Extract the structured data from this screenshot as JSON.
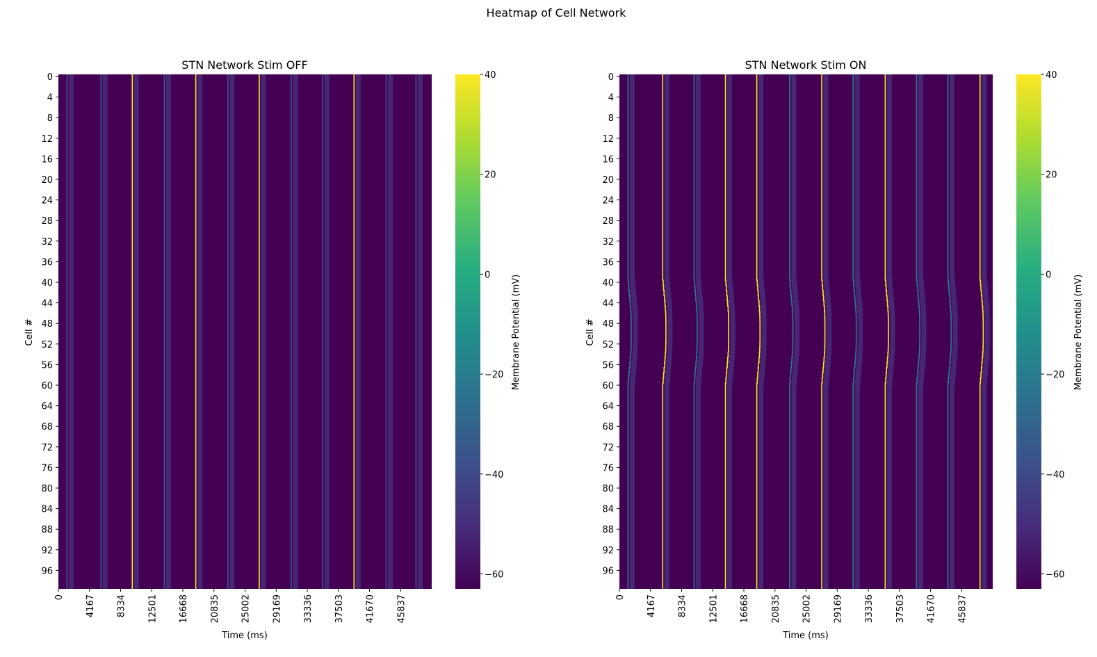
{
  "figure_title": "Heatmap of Cell Network",
  "chart_data": [
    {
      "type": "heatmap",
      "title": "STN Network Stim OFF",
      "xlabel": "Time (ms)",
      "ylabel": "Cell #",
      "x_tick_labels": [
        "0",
        "4167",
        "8334",
        "12501",
        "16668",
        "20835",
        "25002",
        "29169",
        "33336",
        "37503",
        "41670",
        "45837"
      ],
      "x_range_ms": [
        0,
        50000
      ],
      "y_tick_labels": [
        "0",
        "4",
        "8",
        "12",
        "16",
        "20",
        "24",
        "28",
        "32",
        "36",
        "40",
        "44",
        "48",
        "52",
        "56",
        "60",
        "64",
        "68",
        "72",
        "76",
        "80",
        "84",
        "88",
        "92",
        "96"
      ],
      "n_cells": 100,
      "colorbar": {
        "label": "Membrane Potential (mV)",
        "range": [
          -63,
          40
        ],
        "ticks": [
          "40",
          "20",
          "0",
          "−20",
          "−40",
          "−60"
        ],
        "colormap": "viridis"
      },
      "baseline_mV": -63,
      "spike_times_ms": [
        1150,
        5700,
        9900,
        14200,
        18400,
        22700,
        26900,
        31200,
        35400,
        39600,
        43900,
        47900
      ],
      "spike_peak_mV": [
        -35,
        -35,
        40,
        -35,
        40,
        -35,
        40,
        -35,
        -35,
        40,
        -35,
        -35
      ],
      "cell_time_offset_ms": []
    },
    {
      "type": "heatmap",
      "title": "STN Network Stim ON",
      "xlabel": "Time (ms)",
      "ylabel": "Cell #",
      "x_tick_labels": [
        "0",
        "4167",
        "8334",
        "12501",
        "16668",
        "20835",
        "25002",
        "29169",
        "33336",
        "37503",
        "41670",
        "45837"
      ],
      "x_range_ms": [
        0,
        50000
      ],
      "y_tick_labels": [
        "0",
        "4",
        "8",
        "12",
        "16",
        "20",
        "24",
        "28",
        "32",
        "36",
        "40",
        "44",
        "48",
        "52",
        "56",
        "60",
        "64",
        "68",
        "72",
        "76",
        "80",
        "84",
        "88",
        "92",
        "96"
      ],
      "n_cells": 100,
      "colorbar": {
        "label": "Membrane Potential (mV)",
        "range": [
          -63,
          40
        ],
        "ticks": [
          "40",
          "20",
          "0",
          "−20",
          "−40",
          "−60"
        ],
        "colormap": "viridis"
      },
      "baseline_mV": -63,
      "spike_times_ms": [
        1150,
        5800,
        10000,
        14200,
        18400,
        22800,
        27100,
        31300,
        35600,
        39800,
        44000,
        48300
      ],
      "spike_peak_mV": [
        -20,
        40,
        -20,
        40,
        40,
        -20,
        40,
        -20,
        40,
        -20,
        -20,
        40
      ],
      "cell_time_offset_ms": [
        0,
        0,
        0,
        0,
        0,
        0,
        0,
        0,
        0,
        0,
        0,
        0,
        0,
        0,
        0,
        0,
        0,
        0,
        0,
        0,
        0,
        0,
        0,
        0,
        0,
        0,
        0,
        0,
        0,
        0,
        0,
        0,
        0,
        0,
        0,
        0,
        0,
        0,
        0,
        0,
        60,
        120,
        180,
        240,
        300,
        360,
        400,
        420,
        430,
        430,
        430,
        430,
        420,
        400,
        360,
        300,
        240,
        180,
        120,
        60,
        0,
        0,
        0,
        0,
        0,
        0,
        0,
        0,
        0,
        0,
        0,
        0,
        0,
        0,
        0,
        0,
        0,
        0,
        0,
        0,
        0,
        0,
        0,
        0,
        0,
        0,
        0,
        0,
        0,
        0,
        0,
        0,
        0,
        0,
        0,
        0,
        0,
        0,
        0,
        0
      ]
    }
  ]
}
